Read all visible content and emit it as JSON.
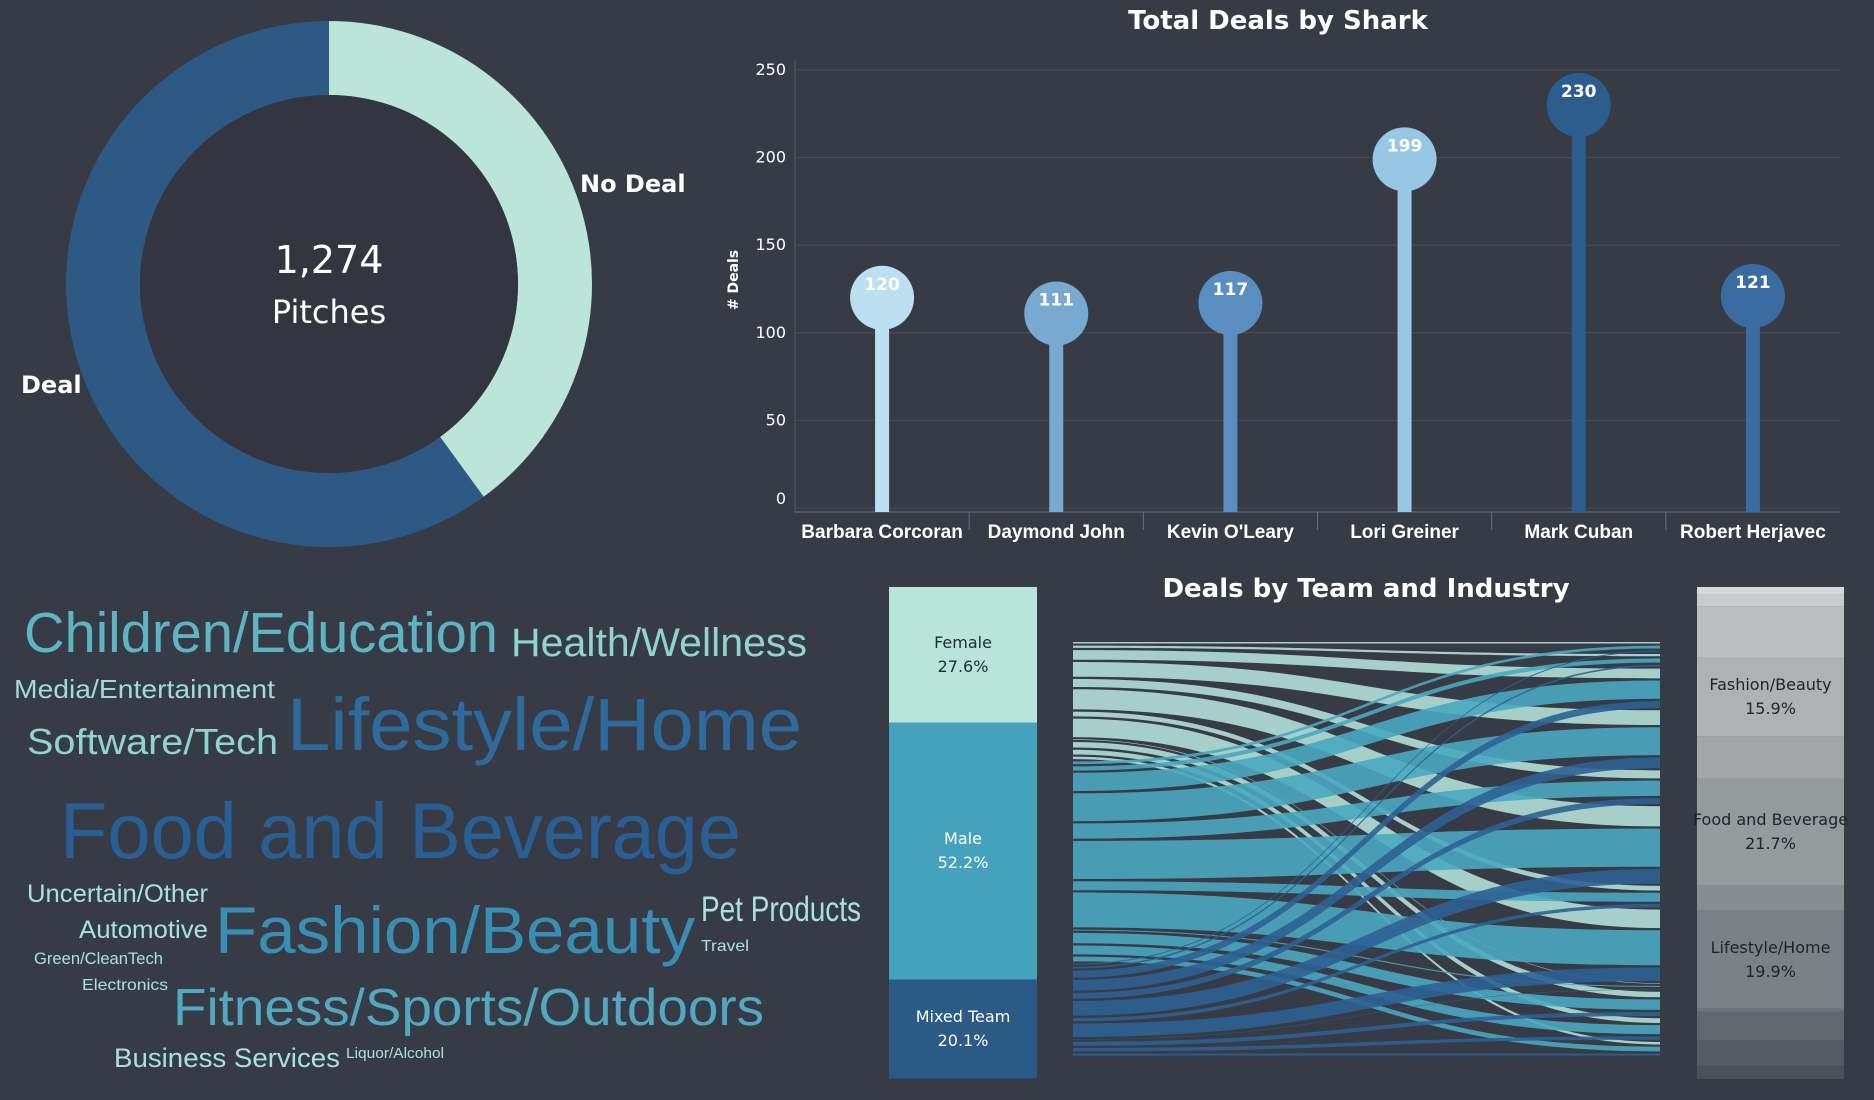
{
  "colors": {
    "background": "#373b46",
    "deal": "#2d5984",
    "no_deal": "#bce5da",
    "female": "#b4e0d8",
    "male": "#44a2bc",
    "mixed": "#2b5a87"
  },
  "chart_data": [
    {
      "type": "pie",
      "variant": "donut",
      "center_value": "1,274",
      "center_label": "Pitches",
      "slices": [
        {
          "label": "No Deal",
          "share": 0.4,
          "color": "#bce5da"
        },
        {
          "label": "Deal",
          "share": 0.6,
          "color": "#2d5984"
        }
      ]
    },
    {
      "type": "bar",
      "variant": "lollipop",
      "title": "Total Deals by Shark",
      "ylabel": "# Deals",
      "xlabel": "",
      "ylim": [
        0,
        250
      ],
      "yticks": [
        "0",
        "50",
        "100",
        "150",
        "200",
        "250"
      ],
      "grid": true,
      "categories": [
        "Barbara Corcoran",
        "Daymond John",
        "Kevin O'Leary",
        "Lori Greiner",
        "Mark Cuban",
        "Robert Herjavec"
      ],
      "values": [
        120,
        111,
        117,
        199,
        230,
        121
      ],
      "value_labels": [
        "120",
        "111",
        "117",
        "199",
        "230",
        "121"
      ],
      "colors": [
        "#bcdff2",
        "#78a9d1",
        "#5b8ec0",
        "#98c6e5",
        "#2c5d8c",
        "#3a6ca2"
      ]
    },
    {
      "type": "wordcloud",
      "words": [
        {
          "text": "Children/Education",
          "color": "#5fb4c4"
        },
        {
          "text": "Health/Wellness",
          "color": "#8fd3d3"
        },
        {
          "text": "Media/Entertainment",
          "color": "#9fdcd8"
        },
        {
          "text": "Software/Tech",
          "color": "#8fd3d3"
        },
        {
          "text": "Lifestyle/Home",
          "color": "#2f6a9c"
        },
        {
          "text": "Food and Beverage",
          "color": "#2a5f93"
        },
        {
          "text": "Uncertain/Other",
          "color": "#a8e2dc"
        },
        {
          "text": "Fashion/Beauty",
          "color": "#3a8db3"
        },
        {
          "text": "Pet Products",
          "color": "#a8e2dc"
        },
        {
          "text": "Automotive",
          "color": "#a8e2dc"
        },
        {
          "text": "Travel",
          "color": "#a8e2dc"
        },
        {
          "text": "Green/CleanTech",
          "color": "#a8e2dc"
        },
        {
          "text": "Electronics",
          "color": "#a8e2dc"
        },
        {
          "text": "Fitness/Sports/Outdoors",
          "color": "#52a8c0"
        },
        {
          "text": "Business Services",
          "color": "#a8e2dc"
        },
        {
          "text": "Liquor/Alcohol",
          "color": "#a8e2dc"
        }
      ]
    },
    {
      "type": "sankey",
      "title": "Deals by Team and Industry",
      "left_nodes": [
        {
          "label": "Female",
          "pct": "27.6%",
          "share": 0.276,
          "color": "#b9e4da",
          "text_color": "#1f2a33"
        },
        {
          "label": "Male",
          "pct": "52.2%",
          "share": 0.522,
          "color": "#44a2bc",
          "text_color": "#ffffff"
        },
        {
          "label": "Mixed Team",
          "pct": "20.1%",
          "share": 0.201,
          "color": "#2b5a87",
          "text_color": "#ffffff"
        }
      ],
      "right_nodes": [
        {
          "label": "",
          "pct": "",
          "share": 0.016,
          "color": "#d6d7d8"
        },
        {
          "label": "",
          "pct": "",
          "share": 0.024,
          "color": "#c9cbcc"
        },
        {
          "label": "",
          "pct": "",
          "share": 0.104,
          "color": "#bcbfc0"
        },
        {
          "label": "Fashion/Beauty",
          "pct": "15.9%",
          "share": 0.159,
          "color": "#afb2b4"
        },
        {
          "label": "",
          "pct": "",
          "share": 0.087,
          "color": "#a2a6a8"
        },
        {
          "label": "Food and Beverage",
          "pct": "21.7%",
          "share": 0.217,
          "color": "#959a9d"
        },
        {
          "label": "",
          "pct": "",
          "share": 0.051,
          "color": "#888d91"
        },
        {
          "label": "Lifestyle/Home",
          "pct": "19.9%",
          "share": 0.199,
          "color": "#7b8186"
        },
        {
          "label": "",
          "pct": "",
          "share": 0.006,
          "color": "#6e747a"
        },
        {
          "label": "",
          "pct": "",
          "share": 0.059,
          "color": "#62676e"
        },
        {
          "label": "",
          "pct": "",
          "share": 0.051,
          "color": "#565b63"
        },
        {
          "label": "",
          "pct": "",
          "share": 0.027,
          "color": "#4b5058"
        }
      ]
    }
  ]
}
